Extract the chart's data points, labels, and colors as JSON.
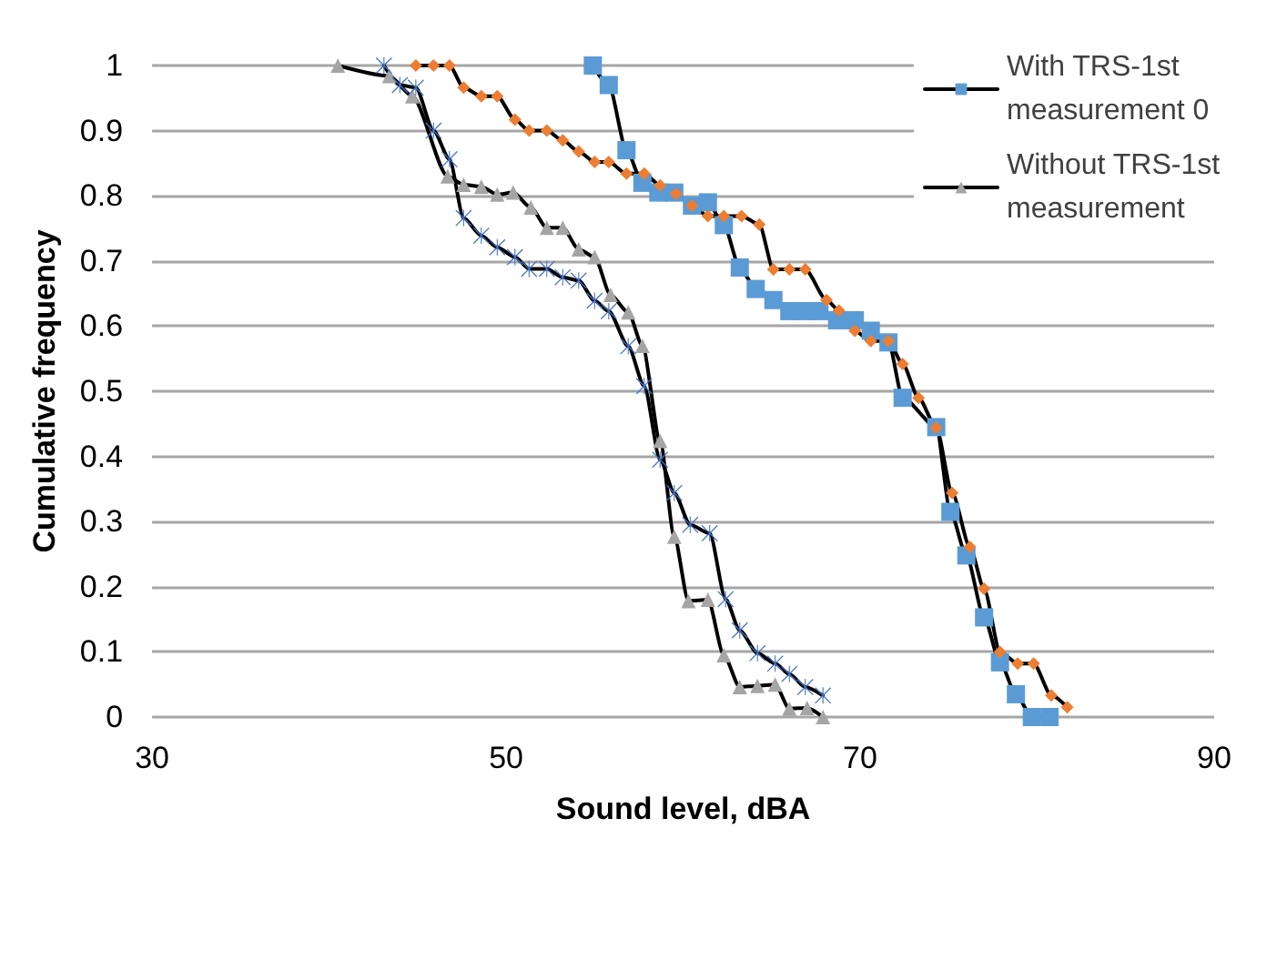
{
  "chart_data": {
    "type": "line",
    "xlabel": "Sound level, dBA",
    "ylabel": "Cumulative frequency",
    "xlim": [
      30,
      90
    ],
    "xticks": [
      30,
      50,
      70,
      90
    ],
    "ylim": [
      0,
      1
    ],
    "yticks": [
      0,
      0.1,
      0.2,
      0.3,
      0.4,
      0.5,
      0.6,
      0.7,
      0.8,
      0.9,
      1
    ],
    "grid": "y",
    "legend": "top right",
    "line_style": "solid",
    "series": [
      {
        "name": "With TRS-1st measurement 0",
        "color": "#5b9bd5",
        "marker": "square",
        "x": [
          54.9,
          55.8,
          56.8,
          57.7,
          58.6,
          59.5,
          60.5,
          61.4,
          62.3,
          63.2,
          64.1,
          65.1,
          66.0,
          66.8,
          67.7,
          68.7,
          69.7,
          70.6,
          71.6,
          72.4,
          74.3,
          75.1,
          76.0,
          77.0,
          77.9,
          78.8,
          79.7,
          80.7
        ],
        "values": [
          1,
          0.97,
          0.87,
          0.82,
          0.805,
          0.805,
          0.785,
          0.79,
          0.755,
          0.69,
          0.657,
          0.64,
          0.623,
          0.623,
          0.623,
          0.609,
          0.609,
          0.593,
          0.575,
          0.49,
          0.445,
          0.315,
          0.248,
          0.153,
          0.084,
          0.035,
          0,
          0
        ]
      },
      {
        "color": "#ed7d31",
        "marker": "diamond",
        "x": [
          44.9,
          45.9,
          46.8,
          47.6,
          48.6,
          49.5,
          50.5,
          51.3,
          52.3,
          53.2,
          54.1,
          55.0,
          55.8,
          56.8,
          57.8,
          58.7,
          59.6,
          60.5,
          61.4,
          62.3,
          63.3,
          64.3,
          65.1,
          66.0,
          66.9,
          68.1,
          68.8,
          69.7,
          70.6,
          71.6,
          72.4,
          73.3,
          74.3,
          75.2,
          76.2,
          77.0,
          77.9,
          78.9,
          79.8,
          80.8,
          81.7
        ],
        "values": [
          1,
          1,
          1,
          0.966,
          0.953,
          0.953,
          0.917,
          0.9,
          0.9,
          0.885,
          0.868,
          0.852,
          0.852,
          0.834,
          0.834,
          0.816,
          0.803,
          0.785,
          0.769,
          0.769,
          0.769,
          0.756,
          0.687,
          0.687,
          0.687,
          0.64,
          0.624,
          0.593,
          0.577,
          0.577,
          0.542,
          0.49,
          0.444,
          0.344,
          0.261,
          0.197,
          0.1,
          0.082,
          0.082,
          0.033,
          0.015
        ]
      },
      {
        "name": "Without TRS-1st measurement",
        "color": "#a5a5a5",
        "marker": "triangle",
        "x": [
          40.5,
          43.4,
          44.7,
          46.7,
          47.6,
          48.6,
          49.5,
          50.4,
          51.4,
          52.3,
          53.2,
          54.1,
          55.0,
          55.9,
          56.9,
          57.7,
          58.7,
          59.5,
          60.3,
          61.4,
          62.3,
          63.2,
          64.2,
          65.2,
          66.0,
          67.0,
          67.9
        ],
        "values": [
          1,
          0.984,
          0.953,
          0.83,
          0.817,
          0.814,
          0.802,
          0.805,
          0.782,
          0.751,
          0.751,
          0.718,
          0.706,
          0.648,
          0.621,
          0.57,
          0.424,
          0.277,
          0.178,
          0.18,
          0.095,
          0.046,
          0.048,
          0.05,
          0.013,
          0.014,
          0
        ]
      },
      {
        "color": "#4472c4",
        "marker": "cross",
        "x": [
          43.1,
          44.0,
          44.9,
          45.9,
          46.8,
          47.6,
          48.6,
          49.5,
          50.5,
          51.3,
          52.3,
          53.2,
          54.1,
          55.0,
          55.8,
          56.9,
          57.8,
          58.7,
          59.5,
          60.4,
          61.5,
          62.4,
          63.2,
          64.2,
          65.2,
          66.0,
          66.9,
          67.9
        ],
        "values": [
          1,
          0.97,
          0.966,
          0.9,
          0.856,
          0.766,
          0.739,
          0.721,
          0.706,
          0.688,
          0.688,
          0.675,
          0.67,
          0.639,
          0.623,
          0.569,
          0.508,
          0.395,
          0.344,
          0.295,
          0.282,
          0.181,
          0.133,
          0.098,
          0.082,
          0.066,
          0.046,
          0.033
        ]
      }
    ]
  }
}
